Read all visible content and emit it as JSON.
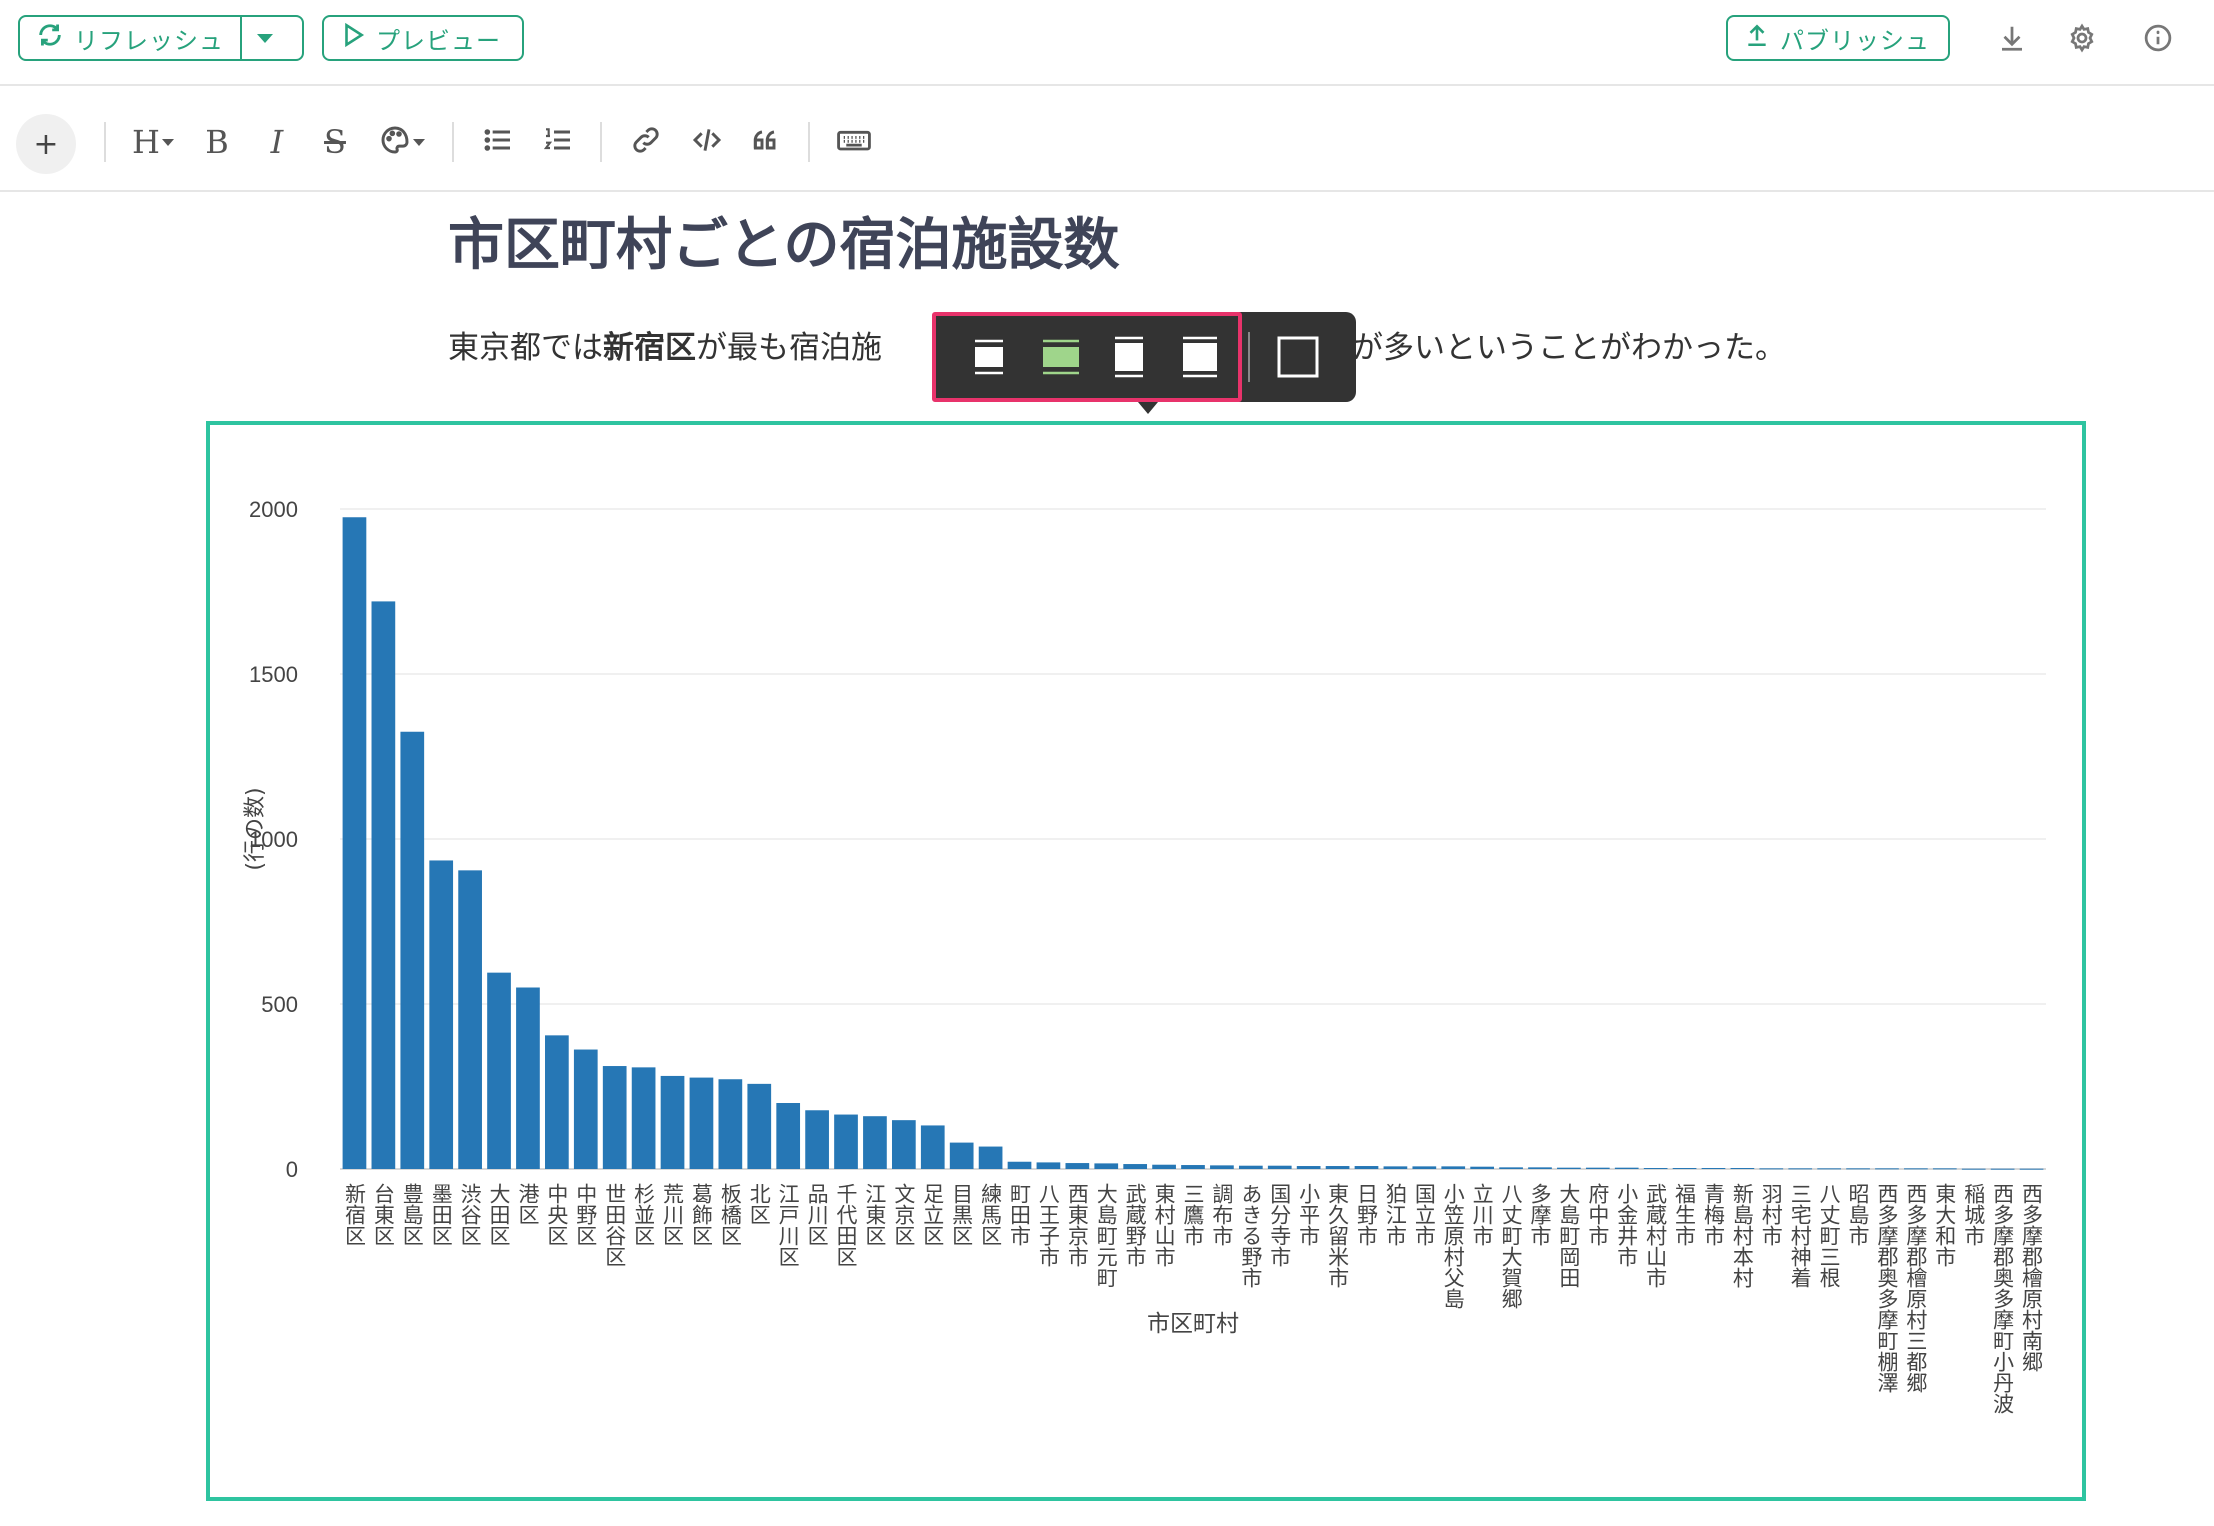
{
  "topbar": {
    "refresh_label": "リフレッシュ",
    "preview_label": "プレビュー",
    "publish_label": "パブリッシュ",
    "accent": "#27a27c",
    "icons": [
      "refresh-icon",
      "chevron-down-icon",
      "play-icon",
      "upload-icon",
      "download-icon",
      "gear-icon",
      "info-icon"
    ]
  },
  "toolbar": {
    "add_label": "+",
    "heading_label": "H",
    "bold_label": "B",
    "italic_label": "I",
    "strike_label": "S",
    "icons": [
      "palette-icon",
      "bullet-list-icon",
      "numbered-list-icon",
      "link-icon",
      "code-icon",
      "quote-icon",
      "keyboard-icon"
    ]
  },
  "doc": {
    "title": "市区町村ごとの宿泊施設数",
    "para_pre": "東京都では",
    "para_bold": "新宿区",
    "para_mid": "が最も宿泊施",
    "para_post": "が多いということがわかった。"
  },
  "popup": {
    "icons": [
      "size-small-icon",
      "size-medium-icon",
      "size-large-icon",
      "size-xlarge-icon",
      "size-full-icon"
    ],
    "highlight_color": "#e8336b",
    "selected_color": "#9fd58b"
  },
  "chart_data": {
    "type": "bar",
    "xlabel": "市区町村",
    "ylabel": "(行の数)",
    "ylim": [
      0,
      2100
    ],
    "yticks": [
      0,
      500,
      1000,
      1500,
      2000
    ],
    "grid": true,
    "bar_color": "#2677b5",
    "categories": [
      "新宿区",
      "台東区",
      "豊島区",
      "墨田区",
      "渋谷区",
      "大田区",
      "港区",
      "中央区",
      "中野区",
      "世田谷区",
      "杉並区",
      "荒川区",
      "葛飾区",
      "板橋区",
      "北区",
      "江戸川区",
      "品川区",
      "千代田区",
      "江東区",
      "文京区",
      "足立区",
      "目黒区",
      "練馬区",
      "町田市",
      "八王子市",
      "西東京市",
      "大島町元町",
      "武蔵野市",
      "東村山市",
      "三鷹市",
      "調布市",
      "あきる野市",
      "国分寺市",
      "小平市",
      "東久留米市",
      "日野市",
      "狛江市",
      "国立市",
      "小笠原村父島",
      "立川市",
      "八丈町大賀郷",
      "多摩市",
      "大島町岡田",
      "府中市",
      "小金井市",
      "武蔵村山市",
      "福生市",
      "青梅市",
      "新島村本村",
      "羽村市",
      "三宅村神着",
      "八丈町三根",
      "昭島市",
      "西多摩郡奥多摩町棚澤",
      "西多摩郡檜原村三都郷",
      "東大和市",
      "稲城市",
      "西多摩郡奥多摩町小丹波",
      "西多摩郡檜原村南郷"
    ],
    "values": [
      1975,
      1720,
      1325,
      935,
      905,
      595,
      550,
      405,
      362,
      312,
      308,
      282,
      277,
      272,
      258,
      200,
      178,
      165,
      160,
      148,
      132,
      80,
      68,
      22,
      20,
      18,
      17,
      15,
      13,
      12,
      11,
      10,
      10,
      9,
      9,
      9,
      8,
      8,
      8,
      7,
      5,
      5,
      4,
      4,
      4,
      3,
      3,
      3,
      3,
      2,
      2,
      2,
      2,
      2,
      2,
      2,
      1,
      1,
      1
    ]
  }
}
